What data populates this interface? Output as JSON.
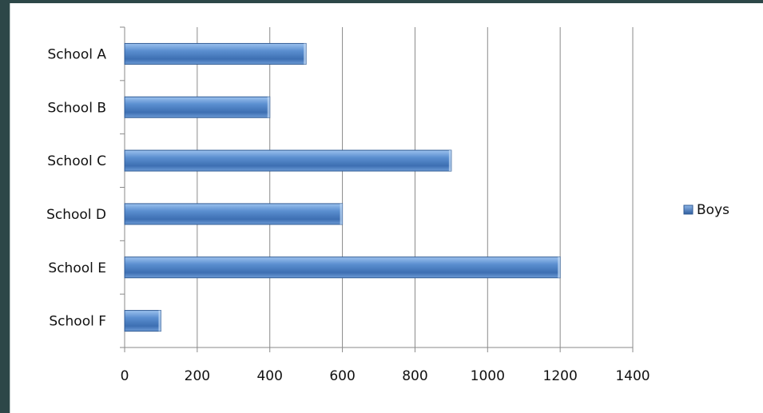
{
  "chart_data": {
    "type": "bar",
    "orientation": "horizontal",
    "categories": [
      "School A",
      "School B",
      "School C",
      "School D",
      "School E",
      "School F"
    ],
    "series": [
      {
        "name": "Boys",
        "values": [
          500,
          400,
          900,
          600,
          1200,
          100
        ],
        "color": "#4a7fc1"
      }
    ],
    "xlim": [
      0,
      1400
    ],
    "xticks": [
      "0",
      "200",
      "400",
      "600",
      "800",
      "1000",
      "1200",
      "1400"
    ],
    "grid": true,
    "legend": "right"
  }
}
